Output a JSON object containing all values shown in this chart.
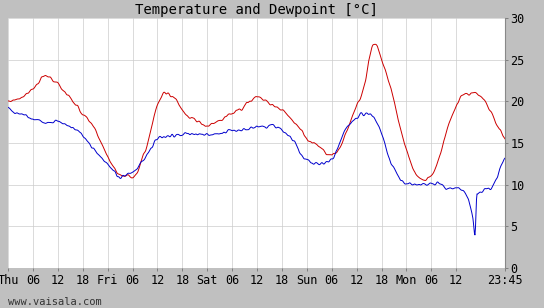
{
  "title": "Temperature and Dewpoint [°C]",
  "watermark": "www.vaisala.com",
  "x_tick_labels": [
    "Thu",
    "06",
    "12",
    "18",
    "Fri",
    "06",
    "12",
    "18",
    "Sat",
    "06",
    "12",
    "18",
    "Sun",
    "06",
    "12",
    "18",
    "Mon",
    "06",
    "12",
    "23:45"
  ],
  "x_tick_positions": [
    0,
    6,
    12,
    18,
    24,
    30,
    36,
    42,
    48,
    54,
    60,
    66,
    72,
    78,
    84,
    90,
    96,
    102,
    108,
    119.75
  ],
  "ylim": [
    0,
    30
  ],
  "xlim": [
    0,
    119.75
  ],
  "yticks": [
    0,
    5,
    10,
    15,
    20,
    25,
    30
  ],
  "grid_color": "#cccccc",
  "bg_color": "#ffffff",
  "outer_bg": "#c0c0c0",
  "temp_color": "#cc0000",
  "dew_color": "#0000cc",
  "line_width": 0.7,
  "title_fontsize": 10,
  "tick_fontsize": 8.5,
  "watermark_fontsize": 7.5
}
